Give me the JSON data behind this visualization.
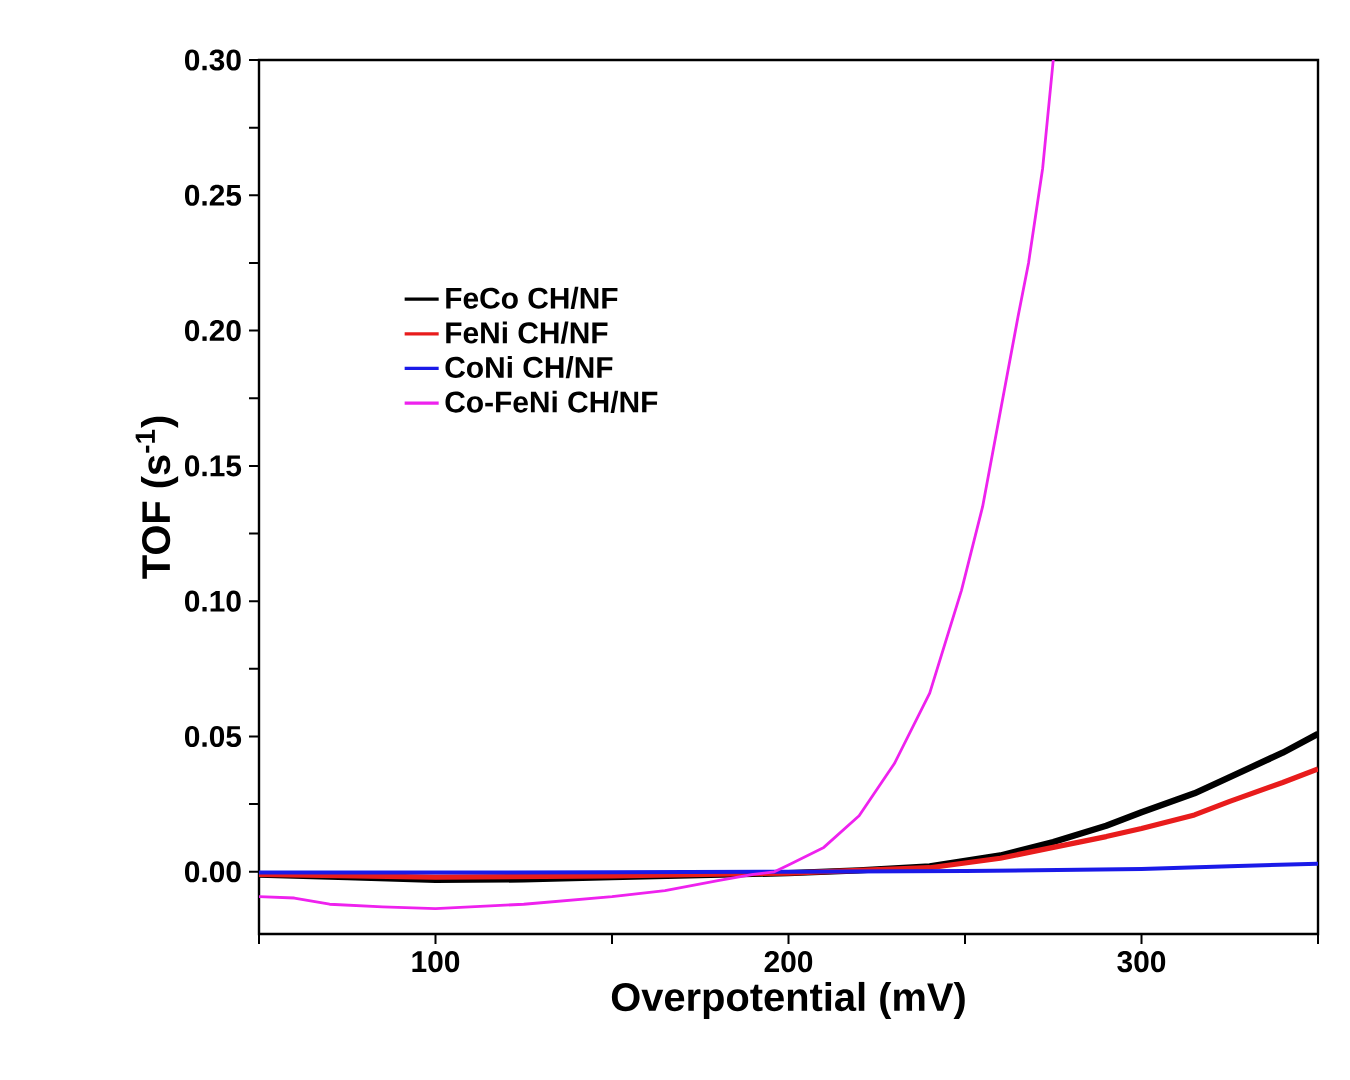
{
  "chart_data": {
    "type": "line",
    "xlabel": "Overpotential (mV)",
    "ylabel": "TOF (s$^{-1}$)",
    "xlim": [
      50,
      350
    ],
    "ylim": [
      -0.023,
      0.3
    ],
    "xticks": [
      {
        "value": 50,
        "label": null
      },
      100,
      {
        "value": 150,
        "label": null
      },
      200,
      {
        "value": 250,
        "label": null
      },
      300,
      {
        "value": 350,
        "label": null
      }
    ],
    "yticks": [
      {
        "value": 0,
        "label": "0.00"
      },
      {
        "value": 0.025,
        "label": null
      },
      0.05,
      {
        "value": 0.075,
        "label": null
      },
      {
        "value": 0.1,
        "label": "0.10"
      },
      {
        "value": 0.125,
        "label": null
      },
      0.15,
      {
        "value": 0.175,
        "label": null
      },
      {
        "value": 0.2,
        "label": "0.20"
      },
      {
        "value": 0.225,
        "label": null
      },
      0.25,
      {
        "value": 0.275,
        "label": null
      },
      {
        "value": 0.3,
        "label": "0.30"
      }
    ],
    "grid": false,
    "legend": "top left",
    "marker": "none",
    "line_style": "solid",
    "series": [
      {
        "name": "FeCo CH/NF",
        "color": "#000000",
        "x": [
          50,
          75,
          100,
          125,
          150,
          175,
          200,
          220,
          240,
          260,
          275,
          290,
          300,
          315,
          325,
          340,
          350
        ],
        "values": [
          -0.001,
          -0.002,
          -0.003,
          -0.0028,
          -0.002,
          -0.0012,
          -0.0005,
          0.0005,
          0.002,
          0.006,
          0.011,
          0.017,
          0.022,
          0.029,
          0.035,
          0.044,
          0.051
        ]
      },
      {
        "name": "FeNi  CH/NF",
        "color": "#e81c1c",
        "x": [
          50,
          100,
          150,
          200,
          220,
          240,
          260,
          275,
          290,
          300,
          315,
          325,
          340,
          350
        ],
        "values": [
          -0.001,
          -0.002,
          -0.0015,
          -0.0005,
          0.0005,
          0.0015,
          0.005,
          0.009,
          0.013,
          0.016,
          0.021,
          0.026,
          0.033,
          0.038
        ]
      },
      {
        "name": "CoNi  CH/NF",
        "color": "#1a1ae8",
        "x": [
          50,
          100,
          150,
          200,
          250,
          300,
          325,
          350
        ],
        "values": [
          -0.0003,
          -0.0003,
          -0.0002,
          0,
          0.0003,
          0.001,
          0.002,
          0.003
        ]
      },
      {
        "name": "Co-FeNi  CH/NF",
        "color": "#ee22ee",
        "x": [
          50,
          60,
          70,
          85,
          100,
          125,
          150,
          165,
          180,
          190,
          196,
          200,
          210,
          220,
          230,
          240,
          249,
          255,
          260,
          265,
          268,
          272,
          275
        ],
        "values": [
          -0.0092,
          -0.0097,
          -0.012,
          -0.013,
          -0.0136,
          -0.012,
          -0.0092,
          -0.007,
          -0.0033,
          -0.001,
          0,
          0.0025,
          0.009,
          0.0207,
          0.04,
          0.066,
          0.104,
          0.135,
          0.17,
          0.205,
          0.225,
          0.26,
          0.3
        ]
      }
    ]
  }
}
